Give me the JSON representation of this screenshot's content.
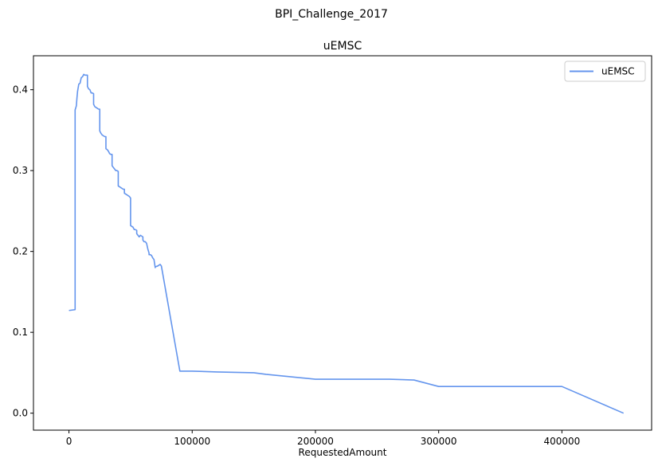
{
  "figure": {
    "suptitle": "BPI_Challenge_2017"
  },
  "chart_data": {
    "type": "line",
    "title": "uEMSC",
    "xlabel": "RequestedAmount",
    "ylabel": "",
    "xlim": [
      -28800,
      472800
    ],
    "ylim": [
      -0.021,
      0.442
    ],
    "xticks": [
      0,
      100000,
      200000,
      300000,
      400000
    ],
    "xtick_labels": [
      "0",
      "100000",
      "200000",
      "300000",
      "400000"
    ],
    "yticks": [
      0.0,
      0.1,
      0.2,
      0.3,
      0.4
    ],
    "ytick_labels": [
      "0.0",
      "0.1",
      "0.2",
      "0.3",
      "0.4"
    ],
    "grid": false,
    "legend_position": "upper right",
    "color": "#6495ED",
    "series": [
      {
        "name": "uEMSC",
        "x": [
          0,
          5000,
          5000,
          6000,
          6500,
          7000,
          8000,
          9000,
          10000,
          11000,
          12000,
          13000,
          14000,
          15000,
          15000,
          16000,
          17000,
          18000,
          19000,
          20000,
          20000,
          21000,
          22000,
          23000,
          24000,
          25000,
          25000,
          26000,
          27000,
          28000,
          29000,
          30000,
          30000,
          31000,
          32000,
          33000,
          34000,
          35000,
          35000,
          36000,
          37000,
          38000,
          39000,
          40000,
          40000,
          42000,
          44000,
          45000,
          45000,
          47000,
          49000,
          50000,
          50000,
          51000,
          52000,
          53000,
          54000,
          55000,
          55000,
          56000,
          57000,
          58000,
          59000,
          60000,
          60000,
          61000,
          62000,
          63000,
          64000,
          65000,
          65000,
          66000,
          67000,
          68000,
          69000,
          70000,
          70000,
          72000,
          74000,
          75000,
          90000,
          100000,
          120000,
          150000,
          160000,
          200000,
          260000,
          280000,
          300000,
          400000,
          450000
        ],
        "y": [
          0.127,
          0.128,
          0.375,
          0.38,
          0.39,
          0.398,
          0.407,
          0.408,
          0.415,
          0.416,
          0.419,
          0.418,
          0.418,
          0.418,
          0.404,
          0.401,
          0.4,
          0.396,
          0.396,
          0.395,
          0.382,
          0.379,
          0.378,
          0.377,
          0.376,
          0.376,
          0.349,
          0.346,
          0.344,
          0.343,
          0.342,
          0.342,
          0.327,
          0.326,
          0.324,
          0.321,
          0.32,
          0.32,
          0.306,
          0.304,
          0.302,
          0.3,
          0.3,
          0.299,
          0.281,
          0.279,
          0.277,
          0.277,
          0.272,
          0.27,
          0.268,
          0.266,
          0.232,
          0.231,
          0.23,
          0.227,
          0.227,
          0.226,
          0.222,
          0.22,
          0.218,
          0.22,
          0.219,
          0.218,
          0.214,
          0.212,
          0.212,
          0.21,
          0.203,
          0.198,
          0.196,
          0.196,
          0.195,
          0.192,
          0.19,
          0.18,
          0.181,
          0.182,
          0.184,
          0.182,
          0.052,
          0.052,
          0.051,
          0.05,
          0.048,
          0.042,
          0.042,
          0.041,
          0.033,
          0.033,
          0.0
        ]
      }
    ]
  }
}
